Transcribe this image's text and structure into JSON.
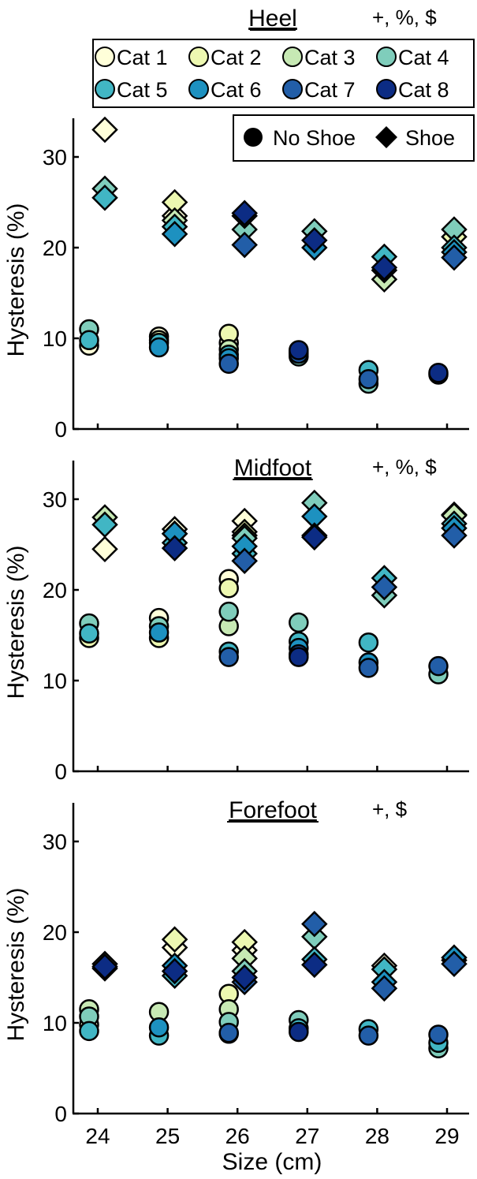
{
  "chart_data": {
    "type": "scatter",
    "xlabel": "Size (cm)",
    "ylabel": "Hysteresis (%)",
    "x_ticks": [
      24,
      25,
      26,
      27,
      28,
      29
    ],
    "y_ticks": [
      0,
      10,
      20,
      30
    ],
    "ylim": [
      0,
      34
    ],
    "legend_categories": [
      {
        "label": "Cat 1",
        "color": "#FFFFD9"
      },
      {
        "label": "Cat 2",
        "color": "#EDF8B1"
      },
      {
        "label": "Cat 3",
        "color": "#C7E9B4"
      },
      {
        "label": "Cat 4",
        "color": "#7FCDBB"
      },
      {
        "label": "Cat 5",
        "color": "#41B6C4"
      },
      {
        "label": "Cat 6",
        "color": "#1D91C0"
      },
      {
        "label": "Cat 7",
        "color": "#225EA8"
      },
      {
        "label": "Cat 8",
        "color": "#0C2C84"
      }
    ],
    "legend_conditions": [
      {
        "label": "No Shoe",
        "marker": "circle"
      },
      {
        "label": "Shoe",
        "marker": "diamond"
      }
    ],
    "panels": [
      {
        "title": "Heel",
        "significance": "+, %, $",
        "no_shoe": [
          {
            "size": 24,
            "values": [
              9.2,
              null,
              null,
              11.0,
              9.8,
              null,
              null,
              null
            ]
          },
          {
            "size": 25,
            "values": [
              10.2,
              9.8,
              null,
              null,
              9.5,
              9.0,
              null,
              null
            ]
          },
          {
            "size": 26,
            "values": [
              9.5,
              10.5,
              8.8,
              null,
              8.2,
              7.8,
              7.2,
              null
            ]
          },
          {
            "size": 27,
            "values": [
              null,
              null,
              null,
              8.0,
              8.5,
              null,
              8.3,
              8.7
            ]
          },
          {
            "size": 28,
            "values": [
              null,
              null,
              null,
              5.0,
              6.5,
              null,
              5.5,
              null
            ]
          },
          {
            "size": 29,
            "values": [
              null,
              null,
              null,
              null,
              null,
              null,
              6.0,
              6.2
            ]
          }
        ],
        "shoe": [
          {
            "size": 24,
            "values": [
              33.0,
              null,
              null,
              26.5,
              25.5,
              null,
              null,
              null
            ]
          },
          {
            "size": 25,
            "values": [
              23.5,
              25.0,
              23.0,
              null,
              22.3,
              21.5,
              null,
              null
            ]
          },
          {
            "size": 26,
            "values": [
              null,
              null,
              null,
              22.0,
              23.5,
              null,
              20.3,
              23.8
            ]
          },
          {
            "size": 27,
            "values": [
              null,
              null,
              null,
              21.8,
              null,
              20.0,
              null,
              20.8
            ]
          },
          {
            "size": 28,
            "values": [
              null,
              null,
              16.5,
              null,
              19.0,
              null,
              17.5,
              17.8
            ]
          },
          {
            "size": 29,
            "values": [
              null,
              21.2,
              null,
              22.0,
              20.0,
              19.5,
              18.9,
              null
            ]
          }
        ]
      },
      {
        "title": "Midfoot",
        "significance": "+, %, $",
        "no_shoe": [
          {
            "size": 24,
            "values": [
              null,
              14.7,
              null,
              16.3,
              15.2,
              null,
              null,
              null
            ]
          },
          {
            "size": 25,
            "values": [
              16.9,
              14.7,
              null,
              16.0,
              null,
              15.3,
              null,
              null
            ]
          },
          {
            "size": 26,
            "values": [
              21.2,
              20.2,
              16.0,
              17.6,
              13.2,
              null,
              12.6,
              null
            ]
          },
          {
            "size": 27,
            "values": [
              null,
              null,
              null,
              16.4,
              14.3,
              13.6,
              12.9,
              12.6
            ]
          },
          {
            "size": 28,
            "values": [
              null,
              null,
              null,
              null,
              14.2,
              12.0,
              11.4,
              null
            ]
          },
          {
            "size": 29,
            "values": [
              null,
              null,
              null,
              10.7,
              null,
              null,
              11.6,
              null
            ]
          }
        ],
        "shoe": [
          {
            "size": 24,
            "values": [
              24.5,
              null,
              28.0,
              null,
              27.2,
              null,
              null,
              null
            ]
          },
          {
            "size": 25,
            "values": [
              26.7,
              26.2,
              null,
              null,
              25.2,
              26.2,
              null,
              24.6
            ]
          },
          {
            "size": 26,
            "values": [
              27.6,
              26.4,
              26.0,
              25.7,
              24.0,
              24.8,
              23.2,
              null
            ]
          },
          {
            "size": 27,
            "values": [
              null,
              null,
              null,
              29.6,
              null,
              28.1,
              26.0,
              25.8
            ]
          },
          {
            "size": 28,
            "values": [
              null,
              null,
              null,
              19.4,
              21.3,
              null,
              20.3,
              null
            ]
          },
          {
            "size": 29,
            "values": [
              null,
              28.3,
              28.2,
              null,
              27.3,
              26.8,
              26.0,
              null
            ]
          }
        ]
      },
      {
        "title": "Forefoot",
        "significance": "+, $",
        "no_shoe": [
          {
            "size": 24,
            "values": [
              9.8,
              null,
              11.5,
              10.7,
              9.1,
              null,
              null,
              null
            ]
          },
          {
            "size": 25,
            "values": [
              null,
              null,
              11.2,
              null,
              8.6,
              9.5,
              null,
              null
            ]
          },
          {
            "size": 26,
            "values": [
              null,
              13.2,
              11.5,
              10.1,
              8.8,
              null,
              8.9,
              null
            ]
          },
          {
            "size": 27,
            "values": [
              null,
              null,
              null,
              10.3,
              9.4,
              null,
              null,
              9.0
            ]
          },
          {
            "size": 28,
            "values": [
              null,
              null,
              null,
              null,
              9.3,
              null,
              8.6,
              null
            ]
          },
          {
            "size": 29,
            "values": [
              null,
              null,
              null,
              7.2,
              7.8,
              null,
              8.7,
              null
            ]
          }
        ],
        "shoe": [
          {
            "size": 24,
            "values": [
              null,
              16.5,
              null,
              null,
              16.0,
              null,
              null,
              16.2
            ]
          },
          {
            "size": 25,
            "values": [
              18.3,
              19.2,
              null,
              null,
              15.2,
              16.3,
              null,
              15.7
            ]
          },
          {
            "size": 26,
            "values": [
              18.0,
              18.9,
              17.1,
              15.7,
              null,
              null,
              14.5,
              15.0
            ]
          },
          {
            "size": 27,
            "values": [
              null,
              null,
              null,
              19.5,
              17.0,
              null,
              20.9,
              16.4
            ]
          },
          {
            "size": 28,
            "values": [
              16.3,
              null,
              null,
              null,
              15.9,
              14.5,
              13.8,
              null
            ]
          },
          {
            "size": 29,
            "values": [
              null,
              null,
              null,
              null,
              16.9,
              17.2,
              16.5,
              null
            ]
          }
        ]
      }
    ]
  }
}
